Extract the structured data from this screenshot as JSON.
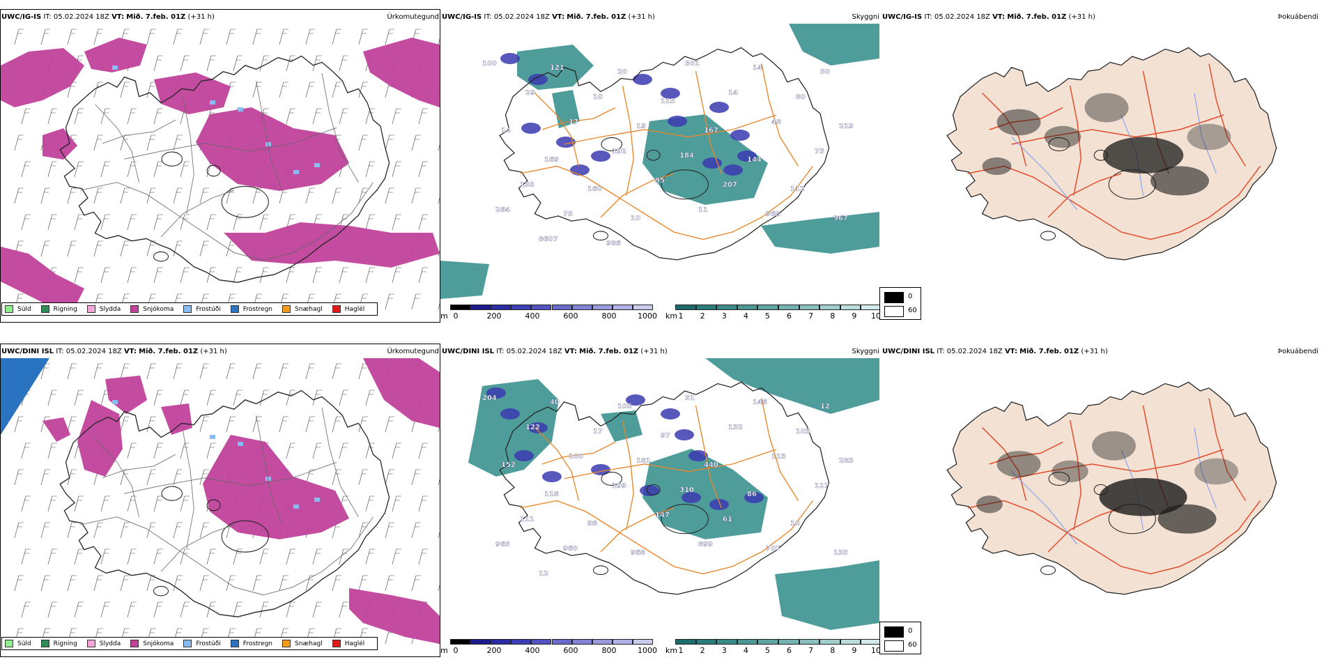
{
  "rows": [
    {
      "model": "UWC/IG-IS",
      "it_label": "IT:",
      "it_value": "05.02.2024 18Z",
      "vt_label": "VT:",
      "vt_value": "Mið. 7.feb. 01Z",
      "lead": "(+31 h)",
      "panels": {
        "precip_title": "Úrkomutegund",
        "vis_title": "Skyggni",
        "fog_title": "Þokuábendi"
      },
      "vis_numbers": [
        "100",
        "121",
        "20",
        "301",
        "14",
        "50",
        "29",
        "10",
        "115",
        "14",
        "80",
        "14",
        "17",
        "19",
        "167",
        "48",
        "219",
        "169",
        "192",
        "184",
        "144",
        "75",
        "135",
        "160",
        "95",
        "207",
        "112",
        "264",
        "75",
        "10",
        "11",
        "968",
        "967",
        "8607",
        "986"
      ]
    },
    {
      "model": "UWC/DINI ISL",
      "it_label": "IT:",
      "it_value": "05.02.2024 18Z",
      "vt_label": "VT:",
      "vt_value": "Mið. 7.feb. 01Z",
      "lead": "(+31 h)",
      "panels": {
        "precip_title": "Úrkomutegund",
        "vis_title": "Skyggni",
        "fog_title": "Þokuábendi"
      },
      "vis_numbers": [
        "204",
        "40",
        "105",
        "51",
        "146",
        "12",
        "122",
        "17",
        "97",
        "132",
        "103",
        "152",
        "100",
        "181",
        "440",
        "113",
        "283",
        "118",
        "199",
        "310",
        "86",
        "117",
        "111",
        "98",
        "147",
        "61",
        "10",
        "965",
        "960",
        "968",
        "899",
        "707",
        "135",
        "12"
      ]
    }
  ],
  "precip_legend": [
    {
      "label": "Súld",
      "color": "#90ee90"
    },
    {
      "label": "Rigning",
      "color": "#2e8b57"
    },
    {
      "label": "Slydda",
      "color": "#f4a6d7"
    },
    {
      "label": "Snjókoma",
      "color": "#c0429b"
    },
    {
      "label": "Frostúði",
      "color": "#87bdf0"
    },
    {
      "label": "Frostregn",
      "color": "#2a73c0"
    },
    {
      "label": "Snæhagl",
      "color": "#f29b1d"
    },
    {
      "label": "Haglél",
      "color": "#e11a1a"
    }
  ],
  "height_bar": {
    "unit": "m",
    "ticks": [
      "0",
      "200",
      "400",
      "600",
      "800",
      "1000"
    ],
    "colors": [
      "#000000",
      "#1a1a8c",
      "#2b2ba6",
      "#3d3db5",
      "#5252c2",
      "#6a6acc",
      "#8282d6",
      "#9a9adf",
      "#b2b2e8",
      "#caccef"
    ]
  },
  "vis_bar": {
    "unit": "km",
    "ticks": [
      "1",
      "2",
      "3",
      "4",
      "5",
      "6",
      "7",
      "8",
      "9",
      "10"
    ],
    "colors": [
      "#1d6b6b",
      "#2a7d7b",
      "#3a8a88",
      "#4c9795",
      "#5fa5a3",
      "#74b3b1",
      "#8ac1bf",
      "#a2cfcd",
      "#badddc",
      "#d2ebea"
    ]
  },
  "fog_legend": [
    {
      "label": "0",
      "color": "#000000"
    },
    {
      "label": "60",
      "color": "#ffffff"
    }
  ],
  "colors": {
    "snow": "#c0429b",
    "sea_teal": "#2f8c88",
    "land_beige": "#f3e2d4",
    "roads_orange": "#e8862a",
    "roads_red": "#e24a2a",
    "river_blue": "#7f9cf0",
    "purple_vis": "#3b3bb0"
  }
}
